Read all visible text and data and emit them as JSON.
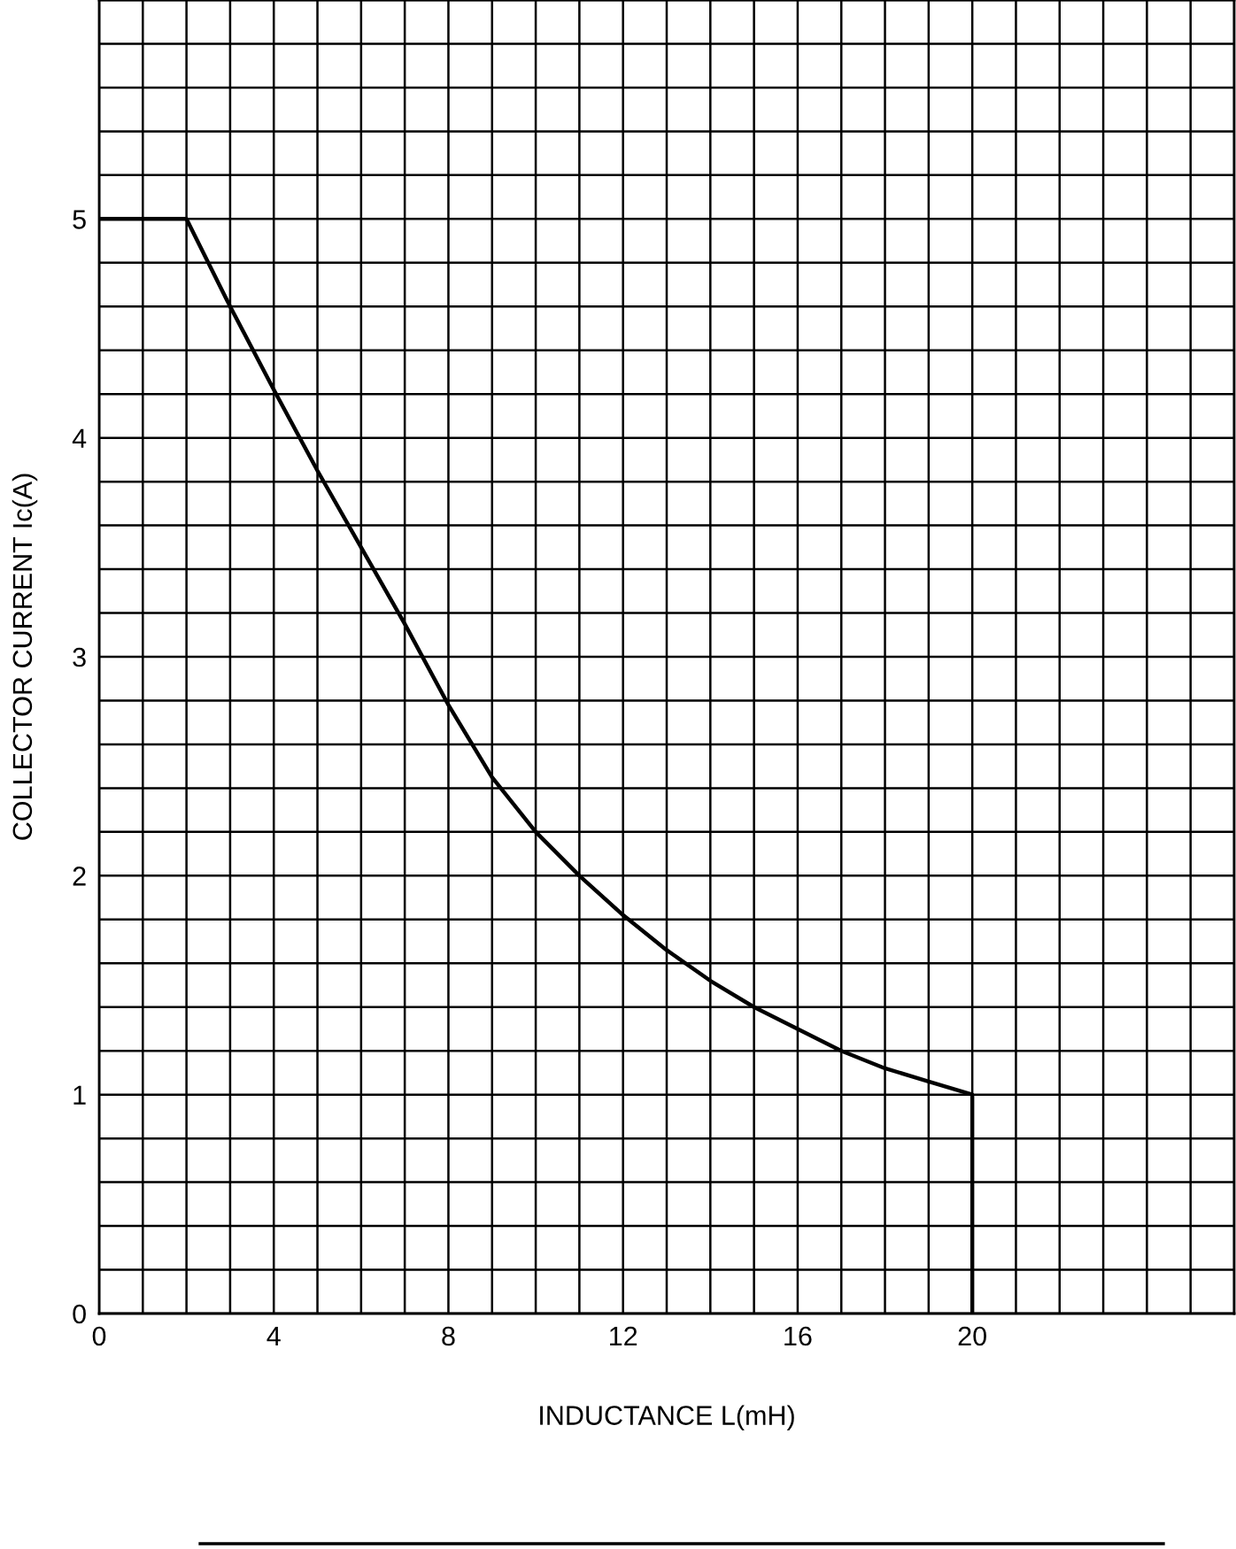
{
  "chart_data": {
    "type": "line",
    "xlabel": "INDUCTANCE L(mH)",
    "ylabel": "COLLECTOR CURRENT Ic(A)",
    "x": [
      0,
      2,
      3,
      4,
      5,
      6,
      7,
      8,
      9,
      10,
      11,
      12,
      13,
      14,
      15,
      16,
      17,
      18,
      19,
      20,
      20
    ],
    "series": [
      {
        "color": "#000000",
        "values": [
          5,
          5,
          4.6,
          4.22,
          3.85,
          3.5,
          3.15,
          2.78,
          2.45,
          2.2,
          2.0,
          1.82,
          1.66,
          1.52,
          1.4,
          1.3,
          1.2,
          1.12,
          1.06,
          1.0,
          0
        ]
      }
    ],
    "xlim": [
      0,
      26
    ],
    "ylim": [
      0,
      6
    ],
    "xticks": [
      0,
      {
        "value": 1,
        "label": null
      },
      {
        "value": 2,
        "label": null
      },
      {
        "value": 3,
        "label": null
      },
      4,
      {
        "value": 5,
        "label": null
      },
      {
        "value": 6,
        "label": null
      },
      {
        "value": 7,
        "label": null
      },
      8,
      {
        "value": 9,
        "label": null
      },
      {
        "value": 10,
        "label": null
      },
      {
        "value": 11,
        "label": null
      },
      12,
      {
        "value": 13,
        "label": null
      },
      {
        "value": 14,
        "label": null
      },
      {
        "value": 15,
        "label": null
      },
      16,
      {
        "value": 17,
        "label": null
      },
      {
        "value": 18,
        "label": null
      },
      {
        "value": 19,
        "label": null
      },
      20,
      {
        "value": 21,
        "label": null
      },
      {
        "value": 22,
        "label": null
      },
      {
        "value": 23,
        "label": null
      },
      {
        "value": 24,
        "label": null
      },
      {
        "value": 25,
        "label": null
      },
      {
        "value": 26,
        "label": null
      }
    ],
    "yticks": [
      0,
      {
        "value": 0.2,
        "label": null
      },
      {
        "value": 0.4,
        "label": null
      },
      {
        "value": 0.6,
        "label": null
      },
      {
        "value": 0.8,
        "label": null
      },
      1,
      {
        "value": 1.2,
        "label": null
      },
      {
        "value": 1.4,
        "label": null
      },
      {
        "value": 1.6,
        "label": null
      },
      {
        "value": 1.8,
        "label": null
      },
      2,
      {
        "value": 2.2,
        "label": null
      },
      {
        "value": 2.4,
        "label": null
      },
      {
        "value": 2.6,
        "label": null
      },
      {
        "value": 2.8,
        "label": null
      },
      3,
      {
        "value": 3.2,
        "label": null
      },
      {
        "value": 3.4,
        "label": null
      },
      {
        "value": 3.6,
        "label": null
      },
      {
        "value": 3.8,
        "label": null
      },
      4,
      {
        "value": 4.2,
        "label": null
      },
      {
        "value": 4.4,
        "label": null
      },
      {
        "value": 4.6,
        "label": null
      },
      {
        "value": 4.8,
        "label": null
      },
      5,
      {
        "value": 5.2,
        "label": null
      },
      {
        "value": 5.4,
        "label": null
      },
      {
        "value": 5.6,
        "label": null
      },
      {
        "value": 5.8,
        "label": null
      },
      {
        "value": 6,
        "label": null
      }
    ],
    "grid": true,
    "marker": "none",
    "line_style": "solid"
  }
}
